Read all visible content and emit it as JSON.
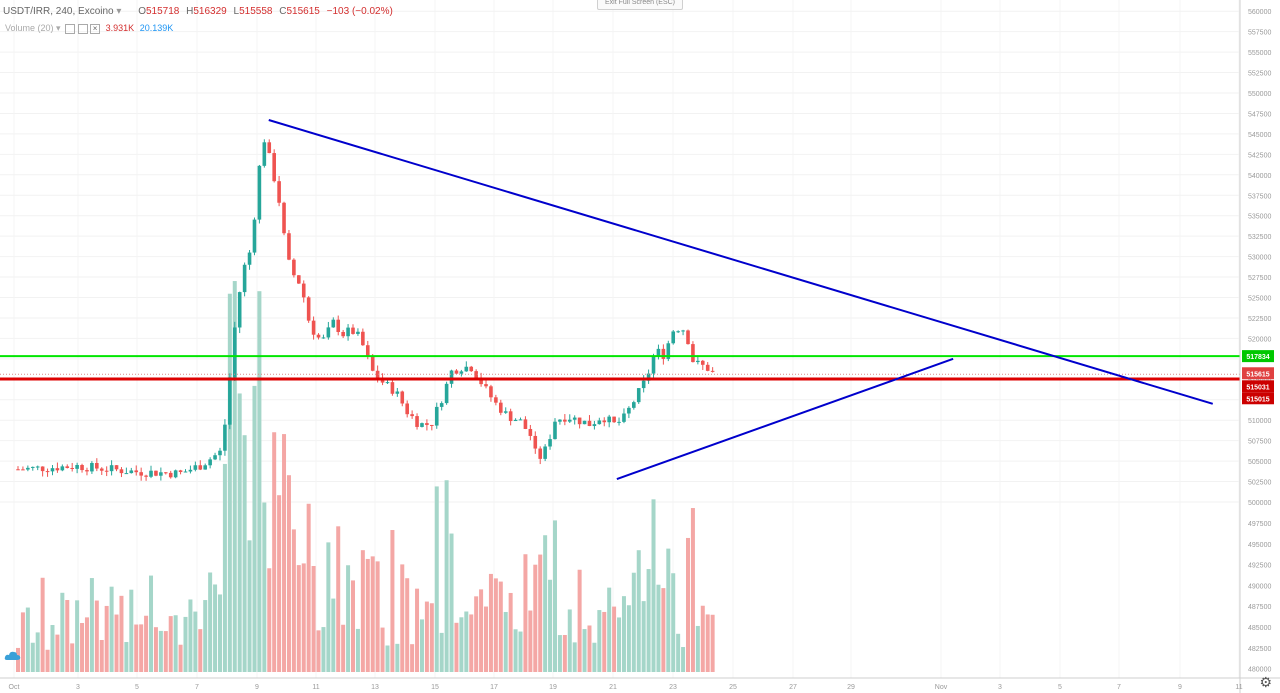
{
  "header": {
    "symbol": "USDT/IRR, 240, Excoino",
    "o_label": "O",
    "o_value": "515718",
    "h_label": "H",
    "h_value": "516329",
    "l_label": "L",
    "l_value": "515558",
    "c_label": "C",
    "c_value": "515615",
    "change": "−103 (−0.02%)",
    "volume_label": "Volume (20)",
    "volume_value1": "3.931K",
    "volume_value2": "20.139K",
    "exit_button": "Exit Full Screen (ESC)"
  },
  "colors": {
    "up": "#26a69a",
    "down": "#ef5350",
    "vol_up": "#a5d6c9",
    "vol_down": "#f4a7a5",
    "trendline": "#0000cc",
    "green_line": "#00e600",
    "red_line": "#dd0000",
    "value_series": "#2196f3"
  },
  "chart_data": {
    "type": "candlestick",
    "title": "USDT/IRR, 240, Excoino",
    "ohlc_last": {
      "open": 515718,
      "high": 516329,
      "low": 515558,
      "close": 515615,
      "change": -103,
      "change_pct": -0.02
    },
    "y_axis_ticks": [
      550000,
      547500,
      545000,
      542500,
      540000,
      537500,
      535000,
      532500,
      530000,
      527500,
      525000,
      522500,
      520000,
      517500,
      515000,
      512500,
      510000,
      507500,
      505000,
      502500,
      500000
    ],
    "y_axis_labels": [
      "550000",
      "547500",
      "545000",
      "542500",
      "540000",
      "537500",
      "535000",
      "532500",
      "530000",
      "527500",
      "525000",
      "522500",
      "520000",
      "517500",
      "515000",
      "512500",
      "510000",
      "507500",
      "505000",
      "502500",
      "500000"
    ],
    "y_axis_top_labels": [
      "560000",
      "557500",
      "555000",
      "552500"
    ],
    "ylim": [
      499000,
      562000
    ],
    "x_axis_labels": [
      "Oct",
      "3",
      "5",
      "7",
      "9",
      "11",
      "13",
      "15",
      "17",
      "19",
      "21",
      "23",
      "25",
      "27",
      "29",
      "Nov",
      "3",
      "5",
      "7",
      "9",
      "11"
    ],
    "candles_anchor": [
      [
        1,
        504000
      ],
      [
        3,
        504400
      ],
      [
        5,
        503700
      ],
      [
        6.5,
        503500
      ],
      [
        7.2,
        504500
      ],
      [
        7.6,
        505500
      ],
      [
        7.9,
        506200
      ],
      [
        8.1,
        512000
      ],
      [
        8.3,
        520000
      ],
      [
        8.6,
        528000
      ],
      [
        8.9,
        531000
      ],
      [
        9.1,
        538000
      ],
      [
        9.3,
        545000
      ],
      [
        9.6,
        541000
      ],
      [
        9.9,
        536000
      ],
      [
        10.1,
        530000
      ],
      [
        10.3,
        528000
      ],
      [
        10.6,
        526500
      ],
      [
        10.9,
        521500
      ],
      [
        11.3,
        519500
      ],
      [
        11.7,
        522000
      ],
      [
        12.0,
        520500
      ],
      [
        12.3,
        521000
      ],
      [
        12.6,
        520000
      ],
      [
        13.0,
        516000
      ],
      [
        13.4,
        514500
      ],
      [
        13.8,
        513500
      ],
      [
        14.2,
        511000
      ],
      [
        14.6,
        509500
      ],
      [
        15.0,
        509500
      ],
      [
        15.4,
        513000
      ],
      [
        15.7,
        516000
      ],
      [
        16.0,
        516500
      ],
      [
        16.4,
        516500
      ],
      [
        16.8,
        514000
      ],
      [
        17.2,
        512000
      ],
      [
        17.6,
        510500
      ],
      [
        18.0,
        510000
      ],
      [
        18.4,
        508000
      ],
      [
        18.6,
        505000
      ],
      [
        18.9,
        506500
      ],
      [
        19.2,
        510000
      ],
      [
        19.6,
        510500
      ],
      [
        20.0,
        510000
      ],
      [
        20.4,
        509500
      ],
      [
        20.8,
        510500
      ],
      [
        21.2,
        509500
      ],
      [
        21.5,
        510000
      ],
      [
        21.9,
        512500
      ],
      [
        22.3,
        515000
      ],
      [
        22.6,
        518500
      ],
      [
        22.9,
        518000
      ],
      [
        23.2,
        521000
      ],
      [
        23.5,
        521500
      ],
      [
        23.7,
        520000
      ],
      [
        23.9,
        517000
      ],
      [
        24.1,
        516800
      ],
      [
        24.4,
        516300
      ],
      [
        24.6,
        515615
      ]
    ]
  },
  "volume_data": {
    "max_value": 20139,
    "tick_labels": [
      "497500",
      "495000",
      "492500",
      "490000",
      "487500",
      "485000",
      "482500",
      "480000"
    ]
  },
  "price_labels": {
    "green_line": "517834",
    "current": "515615",
    "red_line": "515031",
    "red_lower": "515015"
  },
  "trendlines": {
    "upper": {
      "from": [
        9.5,
        546700
      ],
      "to": [
        41.5,
        512000
      ]
    },
    "lower": {
      "from": [
        21.3,
        502800
      ],
      "to": [
        32.7,
        517500
      ]
    },
    "green_level": 517834,
    "red_level": 515031
  }
}
